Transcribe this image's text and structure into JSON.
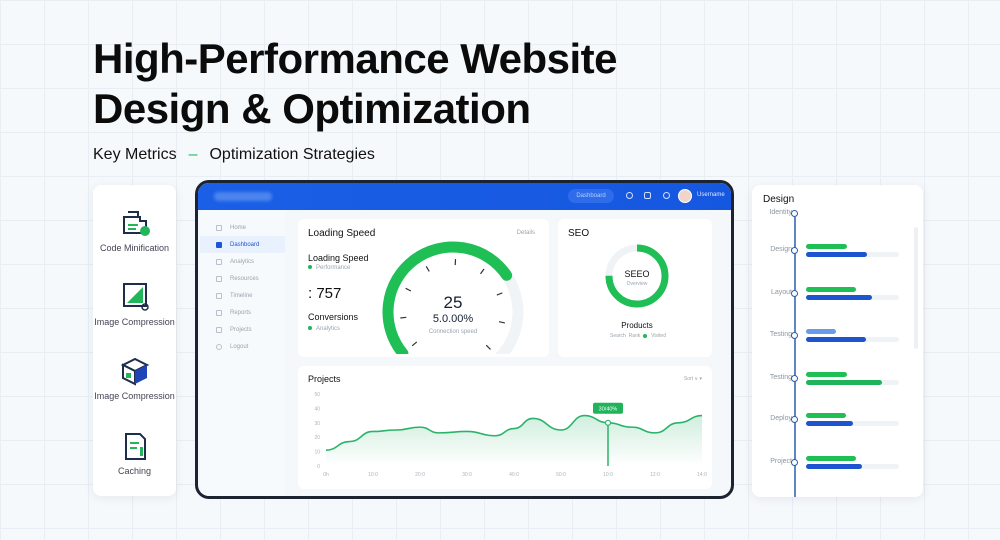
{
  "title_lines": [
    "High-Performance Website",
    "Design & Optimization"
  ],
  "subtitle": {
    "left": "Key Metrics",
    "separator": "–",
    "right": "Optimization Strategies"
  },
  "features": [
    {
      "label": "Code Minification",
      "icon": "code-file-icon"
    },
    {
      "label": "Image Compression",
      "icon": "image-frame-icon"
    },
    {
      "label": "Image Compression",
      "icon": "cube-box-icon"
    },
    {
      "label": "Caching",
      "icon": "document-cache-icon"
    }
  ],
  "dashboard": {
    "topbar": {
      "search_label": "Dashboard",
      "user_name": "Username"
    },
    "sidebar": [
      "Home",
      "Dashboard",
      "Analytics",
      "Resources",
      "Timeline",
      "Reports",
      "Projects",
      "Logout"
    ],
    "loading_speed": {
      "title": "Loading Speed",
      "button": "Details",
      "metric_label": "Loading Speed",
      "metric_sub": "Performance",
      "value": ": 757",
      "conversions_label": "Conversions",
      "conversions_sub": "Analytics",
      "gauge_value": "25",
      "gauge_percent": "5.0.00%",
      "gauge_caption": "Connection speed",
      "gauge_fill": 0.7
    },
    "seo": {
      "title": "SEO",
      "ring_label": "SEEO",
      "ring_sub": "Overview",
      "ring_fill": 0.75,
      "footer_title": "Products",
      "legend": [
        "Search",
        "Rank",
        "Visited"
      ]
    },
    "projects_chart": {
      "title": "Projects",
      "controls": "Sort ∨ ▾"
    }
  },
  "chart_data": {
    "type": "area",
    "title": "Projects",
    "x_tick_labels": [
      "0h",
      "10:0",
      "20:0",
      "30:0",
      "40:0",
      "50:0",
      "10:0",
      "12:0",
      "14:0"
    ],
    "y_tick_labels": [
      "0",
      "10",
      "20",
      "30",
      "40",
      "50"
    ],
    "ylim": [
      0,
      50
    ],
    "x": [
      0,
      0.5,
      1,
      1.5,
      2,
      2.4,
      3,
      3.6,
      4,
      4.4,
      5,
      5.5,
      6,
      6.5,
      7,
      7.5,
      8
    ],
    "values": [
      11,
      17,
      24,
      25,
      27,
      23,
      24,
      21,
      26,
      33,
      25,
      35,
      30,
      27,
      23,
      30,
      35
    ],
    "annotation": {
      "x": 6,
      "label": "30/40%"
    },
    "color": "#2bb36a",
    "grid": false
  },
  "design_panel": {
    "title": "Design",
    "rows": [
      {
        "label": "Identity",
        "green": null,
        "blue": null
      },
      {
        "label": "Design",
        "green": 0.44,
        "blue": 0.66
      },
      {
        "label": "Layout",
        "green": 0.54,
        "blue": 0.71
      },
      {
        "label": "Testing",
        "green": 0.32,
        "blue": 0.65,
        "green_color": "#6a9be8"
      },
      {
        "label": "Testing",
        "green": 0.44,
        "blue": 0.82,
        "blue_color": "#1fb35a"
      },
      {
        "label": "Deploy",
        "green": 0.43,
        "blue": 0.5
      },
      {
        "label": "Project",
        "green": 0.54,
        "blue": 0.6
      }
    ]
  },
  "colors": {
    "primary_blue": "#1a5fe6",
    "green": "#1fbf55",
    "dark_frame": "#1c2432"
  }
}
